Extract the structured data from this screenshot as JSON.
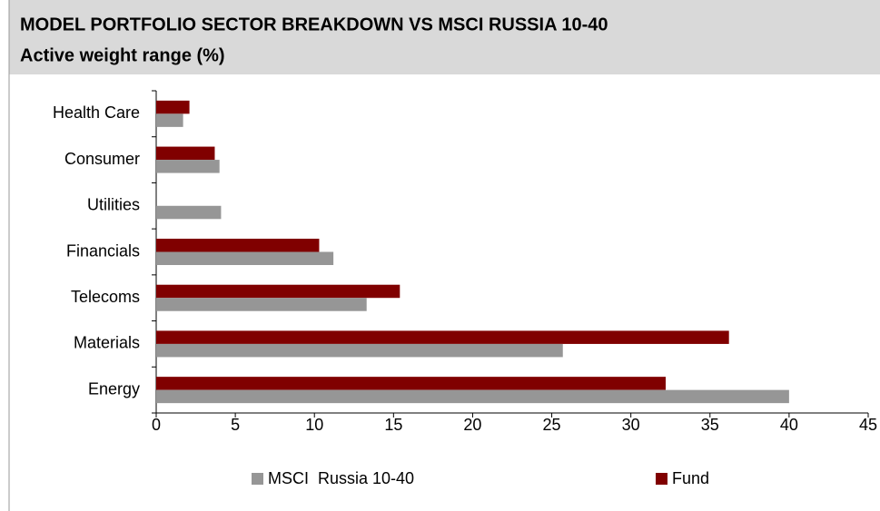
{
  "chart_data": {
    "type": "hbar",
    "title": "MODEL PORTFOLIO SECTOR BREAKDOWN VS MSCI RUSSIA 10-40",
    "subtitle": "Active weight range (%)",
    "categories": [
      "Health Care",
      "Consumer",
      "Utilities",
      "Financials",
      "Telecoms",
      "Materials",
      "Energy"
    ],
    "series": [
      {
        "name": "MSCI  Russia 10-40",
        "color": "#969696",
        "values": [
          1.7,
          4.0,
          4.1,
          11.2,
          13.3,
          25.7,
          40.0
        ]
      },
      {
        "name": "Fund",
        "color": "#800000",
        "values": [
          2.1,
          3.7,
          0,
          10.3,
          15.4,
          36.2,
          32.2
        ]
      }
    ],
    "xlim": [
      0,
      45
    ],
    "xticks": [
      0,
      5,
      10,
      15,
      20,
      25,
      30,
      35,
      40,
      45
    ],
    "grid": false
  }
}
